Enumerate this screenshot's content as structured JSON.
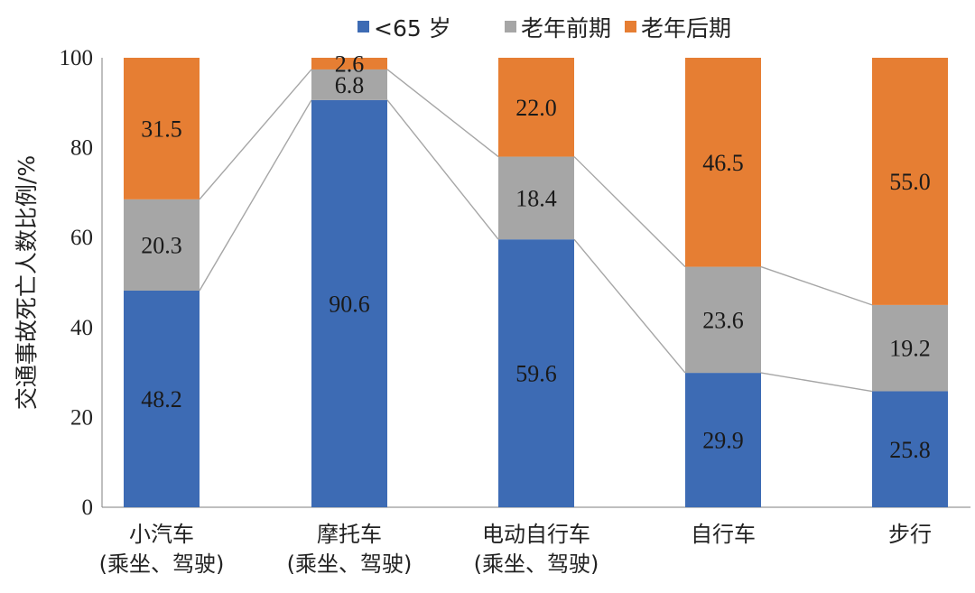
{
  "chart_data": {
    "type": "bar",
    "stacked": true,
    "categories": [
      [
        "小汽车",
        "(乘坐、驾驶)"
      ],
      [
        "摩托车",
        "(乘坐、驾驶)"
      ],
      [
        "电动自行车",
        "(乘坐、驾驶)"
      ],
      [
        "自行车"
      ],
      [
        "步行"
      ]
    ],
    "series": [
      {
        "name": "<65 岁",
        "color": "#3D6BB4",
        "values": [
          48.2,
          90.6,
          59.6,
          29.9,
          25.8
        ]
      },
      {
        "name": "老年前期",
        "color": "#A6A6A6",
        "values": [
          20.3,
          6.8,
          18.4,
          23.6,
          19.2
        ]
      },
      {
        "name": "老年后期",
        "color": "#E67E33",
        "values": [
          31.5,
          2.6,
          22.0,
          46.5,
          55.0
        ]
      }
    ],
    "xlabel": "",
    "ylabel": "交通事故死亡人数比例/%",
    "ylim": [
      0,
      100
    ],
    "yticks": [
      0,
      20,
      40,
      60,
      80,
      100
    ],
    "legend_position": "top",
    "connector_lines": true,
    "connector_color": "#A6A6A6"
  }
}
